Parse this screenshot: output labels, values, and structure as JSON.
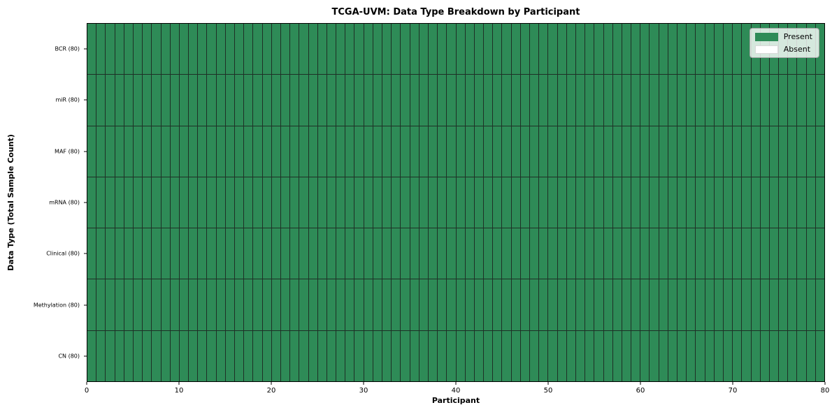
{
  "title": "TCGA-UVM: Data Type Breakdown by Participant",
  "xlabel": "Participant",
  "ylabel": "Data Type (Total Sample Count)",
  "legend": {
    "present_label": "Present",
    "absent_label": "Absent",
    "position": "upper right"
  },
  "colors": {
    "present": "#2e8b57",
    "absent": "#ffffff",
    "cell_edge": "#1e3026",
    "spine": "#000000"
  },
  "chart_data": {
    "type": "heatmap",
    "title": "TCGA-UVM: Data Type Breakdown by Participant",
    "xlabel": "Participant",
    "ylabel": "Data Type (Total Sample Count)",
    "x_range": [
      0,
      80
    ],
    "x_ticks": [
      0,
      10,
      20,
      30,
      40,
      50,
      60,
      70,
      80
    ],
    "n_participants": 80,
    "grid": "on (cell edges)",
    "legend_entries": [
      "Present",
      "Absent"
    ],
    "legend_position": "upper right",
    "rows": [
      {
        "label": "BCR (80)",
        "data_type": "BCR",
        "total_samples": 80,
        "present_count": 80,
        "absent_count": 0
      },
      {
        "label": "miR (80)",
        "data_type": "miR",
        "total_samples": 80,
        "present_count": 80,
        "absent_count": 0
      },
      {
        "label": "MAF (80)",
        "data_type": "MAF",
        "total_samples": 80,
        "present_count": 80,
        "absent_count": 0
      },
      {
        "label": "mRNA (80)",
        "data_type": "mRNA",
        "total_samples": 80,
        "present_count": 80,
        "absent_count": 0
      },
      {
        "label": "Clinical (80)",
        "data_type": "Clinical",
        "total_samples": 80,
        "present_count": 80,
        "absent_count": 0
      },
      {
        "label": "Methylation (80)",
        "data_type": "Methylation",
        "total_samples": 80,
        "present_count": 80,
        "absent_count": 0
      },
      {
        "label": "CN (80)",
        "data_type": "CN",
        "total_samples": 80,
        "present_count": 80,
        "absent_count": 0
      }
    ],
    "cell_value_note": "present for all 80 participants in every row (no absent cells)"
  }
}
